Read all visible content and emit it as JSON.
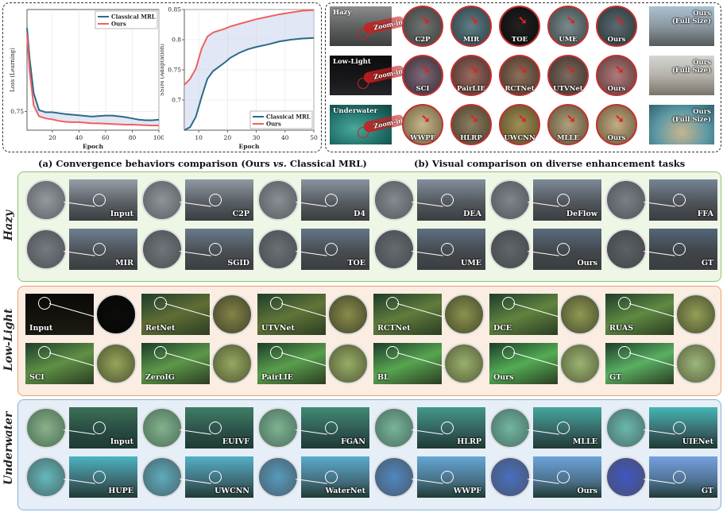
{
  "captions": {
    "a": "(a) Convergence behaviors comparison (Ours vs. Classical MRL)",
    "a_prefix": "(a) Convergence behaviors comparison (Ours ",
    "a_vs": "vs.",
    "a_suffix": " Classical MRL)",
    "b": "(b) Visual comparison on diverse enhancement tasks"
  },
  "chart_data": [
    {
      "type": "line",
      "xlabel": "Epoch",
      "ylabel": "Loss (Learning)",
      "xlim": [
        1,
        100
      ],
      "ylim": [
        0.69,
        1.08
      ],
      "xticks": [
        20,
        40,
        60,
        80,
        100
      ],
      "yticks": [
        0.75
      ],
      "legend": "top-right",
      "grid": true,
      "series": [
        {
          "name": "Classical MRL",
          "color": "#2c6a8a",
          "x": [
            1,
            3,
            6,
            10,
            15,
            20,
            25,
            30,
            35,
            40,
            45,
            50,
            55,
            60,
            65,
            70,
            75,
            80,
            85,
            90,
            95,
            100
          ],
          "y": [
            1.02,
            0.92,
            0.81,
            0.755,
            0.748,
            0.748,
            0.745,
            0.742,
            0.74,
            0.738,
            0.736,
            0.734,
            0.736,
            0.737,
            0.737,
            0.735,
            0.732,
            0.728,
            0.724,
            0.722,
            0.722,
            0.724
          ]
        },
        {
          "name": "Ours",
          "color": "#f06060",
          "x": [
            1,
            3,
            6,
            10,
            15,
            20,
            25,
            30,
            35,
            40,
            45,
            50,
            55,
            60,
            65,
            70,
            75,
            80,
            85,
            90,
            95,
            100
          ],
          "y": [
            1.0,
            0.88,
            0.77,
            0.735,
            0.728,
            0.725,
            0.72,
            0.717,
            0.716,
            0.716,
            0.714,
            0.712,
            0.712,
            0.711,
            0.71,
            0.709,
            0.708,
            0.708,
            0.707,
            0.706,
            0.705,
            0.705
          ]
        }
      ]
    },
    {
      "type": "line",
      "xlabel": "Epoch",
      "ylabel": "SSIM (Adaptation)",
      "xlim": [
        5,
        50
      ],
      "ylim": [
        0.65,
        0.85
      ],
      "xticks": [
        10,
        20,
        30,
        40,
        50
      ],
      "yticks": [
        0.7,
        0.75,
        0.8,
        0.85
      ],
      "legend": "bottom-right",
      "grid": true,
      "series": [
        {
          "name": "Classical MRL",
          "color": "#2c6a8a",
          "x": [
            5,
            7,
            9,
            11,
            13,
            15,
            17,
            19,
            21,
            24,
            27,
            30,
            34,
            38,
            42,
            46,
            50
          ],
          "y": [
            0.65,
            0.655,
            0.672,
            0.705,
            0.735,
            0.748,
            0.755,
            0.762,
            0.77,
            0.778,
            0.784,
            0.788,
            0.792,
            0.797,
            0.8,
            0.802,
            0.803
          ]
        },
        {
          "name": "Ours",
          "color": "#f06060",
          "x": [
            5,
            7,
            9,
            11,
            13,
            15,
            17,
            19,
            21,
            24,
            27,
            30,
            34,
            38,
            42,
            46,
            50
          ],
          "y": [
            0.725,
            0.735,
            0.752,
            0.785,
            0.805,
            0.812,
            0.815,
            0.818,
            0.822,
            0.826,
            0.83,
            0.834,
            0.838,
            0.842,
            0.845,
            0.848,
            0.849
          ]
        }
      ]
    }
  ],
  "visual": {
    "zoom_text": "Zoom-in",
    "rows": [
      {
        "source": "Hazy",
        "labels": [
          "C2P",
          "MIR",
          "TOE",
          "UME",
          "Ours"
        ],
        "full": "Ours\n(Full Size)"
      },
      {
        "source": "Low-Light",
        "labels": [
          "SCI",
          "PairLIE",
          "RCTNet",
          "UTVNet",
          "Ours"
        ],
        "full": "Ours\n(Full Size)"
      },
      {
        "source": "Underwater",
        "labels": [
          "WWPF",
          "HLRP",
          "UWCNN",
          "MLLE",
          "Ours"
        ],
        "full": "Ours\n(Full Size)"
      }
    ]
  },
  "panels": [
    {
      "title": "Hazy",
      "row1": [
        "Input",
        "C2P",
        "D4",
        "DEA",
        "DeFlow",
        "FFA"
      ],
      "row2": [
        "MIR",
        "SGID",
        "TOE",
        "UME",
        "Ours",
        "GT"
      ]
    },
    {
      "title": "Low-Light",
      "row1": [
        "Input",
        "RetNet",
        "UTVNet",
        "RCTNet",
        "DCE",
        "RUAS"
      ],
      "row2": [
        "SCI",
        "ZeroIG",
        "PairLIE",
        "BL",
        "Ours",
        "GT"
      ]
    },
    {
      "title": "Underwater",
      "row1": [
        "Input",
        "EUIVF",
        "FGAN",
        "HLRP",
        "MLLE",
        "UIENet"
      ],
      "row2": [
        "HUPE",
        "UWCNN",
        "WaterNet",
        "WWPF",
        "Ours",
        "GT"
      ]
    }
  ],
  "colors": {
    "hazy_border": "#8cc46e",
    "hazy_bg": "#eef6e6",
    "low_border": "#e8a070",
    "low_bg": "#fbede2",
    "under_border": "#8ab0d6",
    "under_bg": "#e6eef8"
  }
}
